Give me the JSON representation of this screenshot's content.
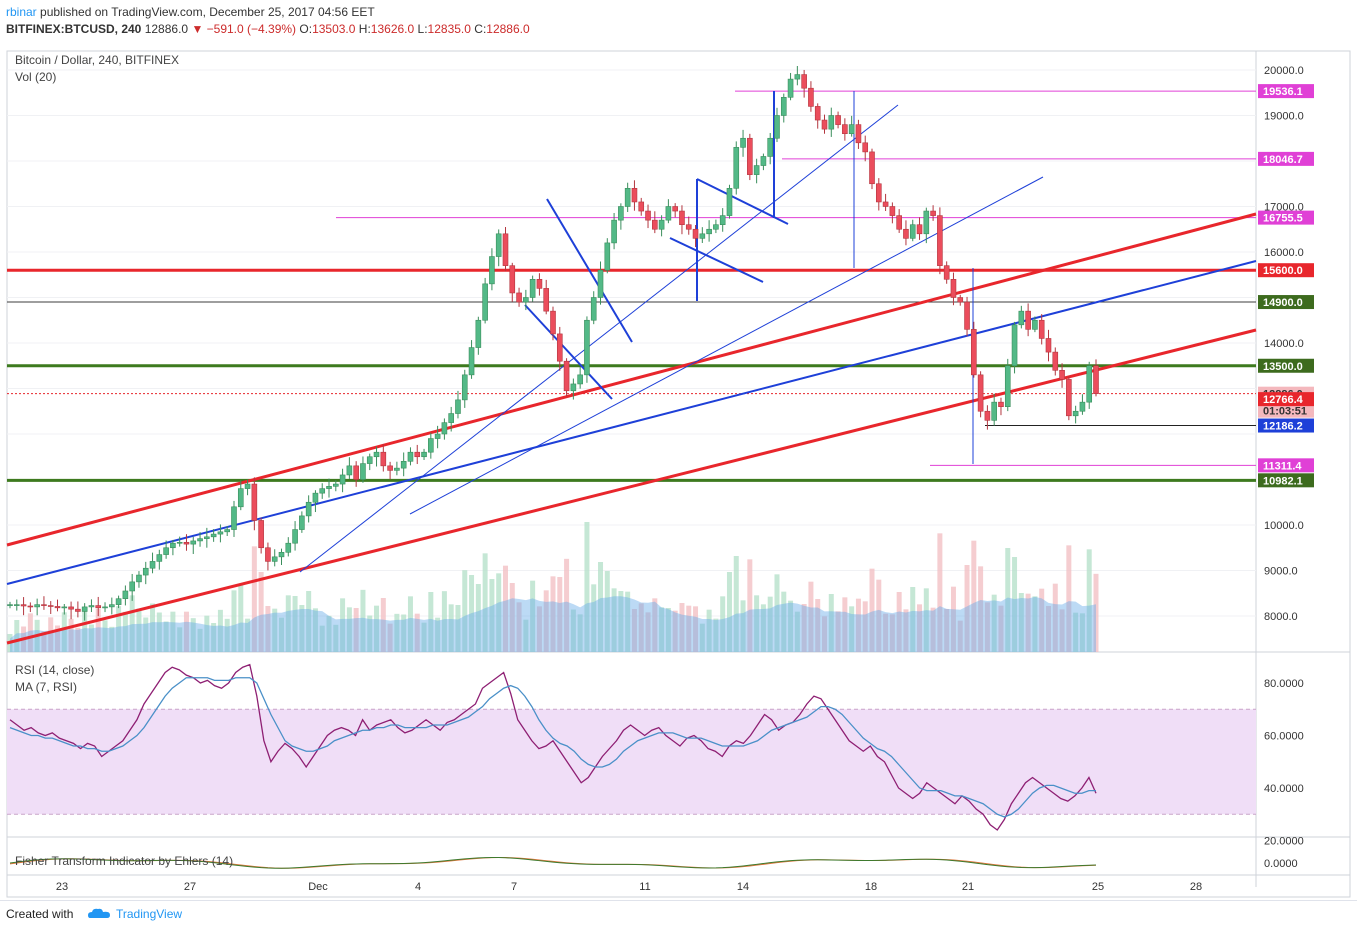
{
  "header": {
    "user": "rbinar",
    "published": "published on TradingView.com, December 25, 2017 04:56 EET",
    "symbol": "BITFINEX:BTCUSD, 240",
    "last": "12886.0",
    "change": "▼ −591.0 (−4.39%)",
    "o_label": "O:",
    "o": "13503.0",
    "h_label": "H:",
    "h": "13626.0",
    "l_label": "L:",
    "l": "12835.0",
    "c_label": "C:",
    "c": "12886.0"
  },
  "legend": {
    "main": "Bitcoin / Dollar, 240, BITFINEX",
    "vol": "Vol (20)",
    "rsi": "RSI (14, close)",
    "ma": "MA (7, RSI)",
    "fisher": "Fisher Transform Indicator by Ehlers (14)"
  },
  "footer": {
    "created": "Created with",
    "brand": "TradingView"
  },
  "colors": {
    "up": "#53b987",
    "down": "#eb4d5c",
    "trend_red": "#e8262c",
    "trend_blue": "#1e40d8",
    "support_green": "#3d7a1e",
    "magenta": "#e040d6",
    "rsi_line": "#8e1f73",
    "rsi_ma": "#4a90c8",
    "rsi_band": "#f0def7"
  },
  "chart_data": [
    {
      "type": "candlestick",
      "title": "Bitcoin / Dollar, 240, BITFINEX",
      "y_ticks": [
        "20000.0",
        "19000.0",
        "17000.0",
        "16000.0",
        "14000.0",
        "10000.0",
        "9000.0",
        "8000.0"
      ],
      "x_ticks": [
        "23",
        "27",
        "Dec",
        "4",
        "7",
        "11",
        "14",
        "18",
        "21",
        "25",
        "28"
      ],
      "ylim": [
        7250,
        20750
      ],
      "price_labels": [
        {
          "value": 19536.1,
          "text": "19536.1",
          "color": "#e040d6"
        },
        {
          "value": 18046.7,
          "text": "18046.7",
          "color": "#e040d6"
        },
        {
          "value": 16755.5,
          "text": "16755.5",
          "color": "#e040d6"
        },
        {
          "value": 15600.0,
          "text": "15600.0",
          "color": "#e8262c"
        },
        {
          "value": 14900.0,
          "text": "14900.0",
          "color": "#3d6b1e"
        },
        {
          "value": 13500.0,
          "text": "13500.0",
          "color": "#3d6b1e"
        },
        {
          "value": 12886.0,
          "text": "12886.0",
          "color": "#f4b8bd",
          "fg": "#333"
        },
        {
          "value": 12886.0,
          "text": "01:03:51",
          "color": "#f4b8bd",
          "fg": "#333",
          "offset": 1
        },
        {
          "value": 12766.4,
          "text": "12766.4",
          "color": "#e8262c"
        },
        {
          "value": 12186.2,
          "text": "12186.2",
          "color": "#1e40d8"
        },
        {
          "value": 11311.4,
          "text": "11311.4",
          "color": "#e040d6"
        },
        {
          "value": 10982.1,
          "text": "10982.1",
          "color": "#3d6b1e"
        }
      ],
      "series": [
        {
          "name": "BTCUSD",
          "values": [
            8250,
            8250,
            8220,
            8200,
            8250,
            8230,
            8210,
            8180,
            8200,
            8150,
            8100,
            8200,
            8230,
            8180,
            8200,
            8250,
            8380,
            8550,
            8750,
            8900,
            9050,
            9200,
            9350,
            9500,
            9600,
            9620,
            9580,
            9650,
            9700,
            9740,
            9800,
            9850,
            9900,
            10400,
            10800,
            10900,
            10100,
            9500,
            9200,
            9300,
            9400,
            9600,
            9900,
            10200,
            10500,
            10700,
            10800,
            10850,
            10900,
            11100,
            11300,
            11000,
            11350,
            11500,
            11600,
            11300,
            11200,
            11250,
            11400,
            11600,
            11500,
            11600,
            11900,
            12000,
            12250,
            12450,
            12750,
            13300,
            13900,
            14500,
            15300,
            15900,
            16400,
            15700,
            15100,
            14900,
            15000,
            15400,
            15200,
            14700,
            14200,
            13600,
            12950,
            13100,
            13300,
            14500,
            15000,
            15600,
            16200,
            16700,
            17000,
            17400,
            17100,
            16900,
            16700,
            16500,
            16700,
            17000,
            16900,
            16600,
            16500,
            16300,
            16400,
            16500,
            16600,
            16800,
            17400,
            18300,
            18500,
            17700,
            17900,
            18100,
            18500,
            19000,
            19400,
            19800,
            19900,
            19600,
            19200,
            18900,
            18700,
            19000,
            18800,
            18600,
            18800,
            18400,
            18200,
            17500,
            17100,
            17000,
            16800,
            16500,
            16300,
            16600,
            16400,
            16900,
            16800,
            15700,
            15400,
            15000,
            14900,
            14300,
            13300,
            12500,
            12300,
            12700,
            12600,
            13500,
            14400,
            14700,
            14300,
            14500,
            14100,
            13800,
            13400,
            13200,
            12400,
            12500,
            12700,
            13500,
            12886
          ]
        }
      ]
    },
    {
      "type": "bar",
      "title": "Vol (20)",
      "note": "volume histogram with moving average area"
    },
    {
      "type": "line",
      "title": "RSI (14, close)",
      "y_ticks": [
        "80.0000",
        "60.0000",
        "40.0000",
        "20.0000"
      ],
      "ylim": [
        18,
        90
      ],
      "band": [
        30,
        70
      ],
      "series": [
        {
          "name": "RSI (14, close)",
          "values": [
            66,
            64,
            62,
            63,
            61,
            60,
            61,
            59,
            58,
            57,
            55,
            57,
            56,
            52,
            54,
            56,
            58,
            62,
            66,
            72,
            76,
            80,
            84,
            86,
            85,
            83,
            82,
            80,
            81,
            79,
            78,
            80,
            84,
            86,
            87,
            75,
            58,
            50,
            54,
            57,
            55,
            52,
            48,
            52,
            56,
            60,
            62,
            63,
            62,
            60,
            66,
            62,
            64,
            65,
            66,
            63,
            61,
            62,
            64,
            66,
            64,
            62,
            65,
            66,
            68,
            70,
            72,
            78,
            80,
            82,
            84,
            76,
            66,
            62,
            58,
            55,
            56,
            58,
            54,
            50,
            46,
            42,
            44,
            48,
            52,
            55,
            58,
            62,
            64,
            62,
            60,
            62,
            63,
            60,
            58,
            56,
            59,
            60,
            58,
            55,
            54,
            52,
            56,
            58,
            57,
            60,
            64,
            68,
            66,
            62,
            64,
            65,
            68,
            72,
            75,
            74,
            70,
            66,
            62,
            58,
            56,
            54,
            56,
            52,
            50,
            45,
            40,
            38,
            36,
            38,
            42,
            40,
            38,
            36,
            34,
            37,
            35,
            32,
            30,
            26,
            24,
            28,
            34,
            38,
            42,
            44,
            42,
            40,
            38,
            36,
            35,
            37,
            40,
            44,
            38
          ],
          "ma": [
            63,
            62,
            61,
            60,
            60,
            59,
            59,
            58,
            57,
            56,
            56,
            55,
            55,
            54,
            54,
            55,
            56,
            58,
            60,
            63,
            67,
            71,
            75,
            78,
            80,
            82,
            82,
            82,
            82,
            81,
            81,
            81,
            82,
            82,
            82,
            80,
            74,
            68,
            63,
            58,
            56,
            55,
            54,
            54,
            55,
            56,
            58,
            59,
            60,
            61,
            62,
            62,
            63,
            63,
            64,
            64,
            63,
            63,
            63,
            63,
            64,
            64,
            64,
            65,
            66,
            67,
            69,
            71,
            74,
            76,
            78,
            79,
            78,
            75,
            71,
            66,
            62,
            59,
            57,
            56,
            54,
            51,
            49,
            48,
            48,
            49,
            51,
            54,
            56,
            58,
            59,
            60,
            61,
            61,
            61,
            60,
            59,
            59,
            59,
            58,
            57,
            56,
            56,
            56,
            56,
            57,
            58,
            60,
            62,
            63,
            64,
            65,
            66,
            67,
            69,
            71,
            71,
            70,
            68,
            65,
            62,
            59,
            57,
            55,
            54,
            52,
            49,
            46,
            43,
            40,
            39,
            39,
            39,
            38,
            37,
            37,
            36,
            35,
            34,
            32,
            30,
            29,
            30,
            32,
            35,
            38,
            40,
            41,
            41,
            40,
            39,
            38,
            38,
            39,
            39
          ]
        }
      ]
    },
    {
      "type": "line",
      "title": "Fisher Transform Indicator by Ehlers (14)",
      "y_ticks": [
        "0.0000"
      ],
      "ylim": [
        -1.5,
        1.5
      ]
    }
  ]
}
